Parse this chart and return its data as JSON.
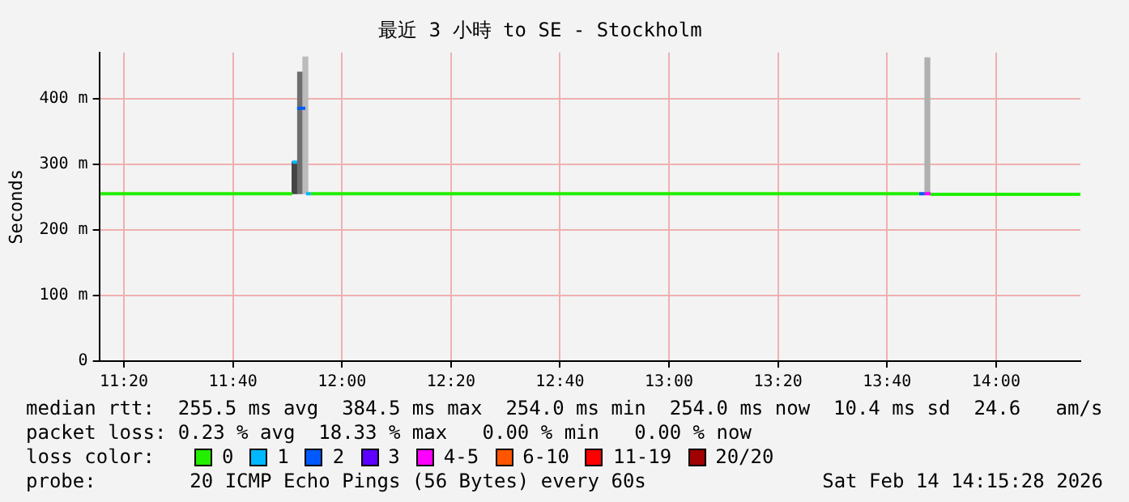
{
  "chart_data": {
    "type": "line",
    "title": "最近 3 小時 to SE - Stockholm",
    "ylabel": "Seconds",
    "xlim": [
      11.258,
      14.258
    ],
    "xticks": [
      {
        "value": 11.3333,
        "label": "11:20"
      },
      {
        "value": 11.6667,
        "label": "11:40"
      },
      {
        "value": 12,
        "label": "12:00"
      },
      {
        "value": 12.3333,
        "label": "12:20"
      },
      {
        "value": 12.6667,
        "label": "12:40"
      },
      {
        "value": 13,
        "label": "13:00"
      },
      {
        "value": 13.3333,
        "label": "13:20"
      },
      {
        "value": 13.6667,
        "label": "13:40"
      },
      {
        "value": 14,
        "label": "14:00"
      }
    ],
    "ylim": [
      0,
      470
    ],
    "yticks": [
      0,
      {
        "value": 100,
        "label": "100 m"
      },
      {
        "value": 200,
        "label": "200 m"
      },
      {
        "value": 300,
        "label": "300 m"
      },
      {
        "value": 400,
        "label": "400 m"
      }
    ],
    "grid": true,
    "legend": "bottom",
    "legend_title": "loss color:",
    "marker": "none",
    "series": [
      {
        "type": "bar",
        "x": [
          11.855,
          11.872,
          11.888,
          13.79
        ],
        "base": [
          255,
          255,
          255,
          255
        ],
        "values": [
          48,
          185,
          208,
          207
        ],
        "colors": [
          "#444444",
          "#6e6e6e",
          "#bbbbbb",
          "#b0b0b0"
        ]
      },
      {
        "name": "0",
        "color": "#22ee00",
        "x": [
          11.262,
          11.848,
          11.85,
          11.905,
          13.765,
          13.767,
          13.8,
          14.258
        ],
        "values": [
          255,
          255,
          null,
          255,
          255,
          null,
          254,
          254
        ]
      },
      {
        "name": "1",
        "color": "#00b8ff",
        "x": [
          11.848,
          11.863,
          11.865,
          11.89,
          11.905
        ],
        "values": [
          303,
          303,
          null,
          255,
          255
        ]
      },
      {
        "name": "2",
        "color": "#0059ff",
        "x": [
          11.863,
          11.888
        ],
        "values": [
          385,
          385
        ]
      },
      {
        "color": "#0059ff",
        "x": [
          13.765,
          13.782
        ],
        "values": [
          255,
          255
        ]
      },
      {
        "name": "3",
        "color": "#5e00ff"
      },
      {
        "name": "4-5",
        "color": "#ff00ff",
        "x": [
          13.782,
          13.8
        ],
        "values": [
          255,
          255
        ]
      },
      {
        "name": "6-10",
        "color": "#ff5500"
      },
      {
        "name": "11-19",
        "color": "#ff0000"
      },
      {
        "name": "20/20",
        "color": "#a10000"
      }
    ],
    "annotations": [
      "median rtt:  255.5 ms avg  384.5 ms max  254.0 ms min  254.0 ms now  10.4 ms sd  24.6   am/s",
      "packet loss: 0.23 % avg  18.33 % max   0.00 % min   0.00 % now",
      "probe:        20 ICMP Echo Pings (56 Bytes) every 60s",
      "Sat Feb 14 14:15:28 2026"
    ]
  }
}
